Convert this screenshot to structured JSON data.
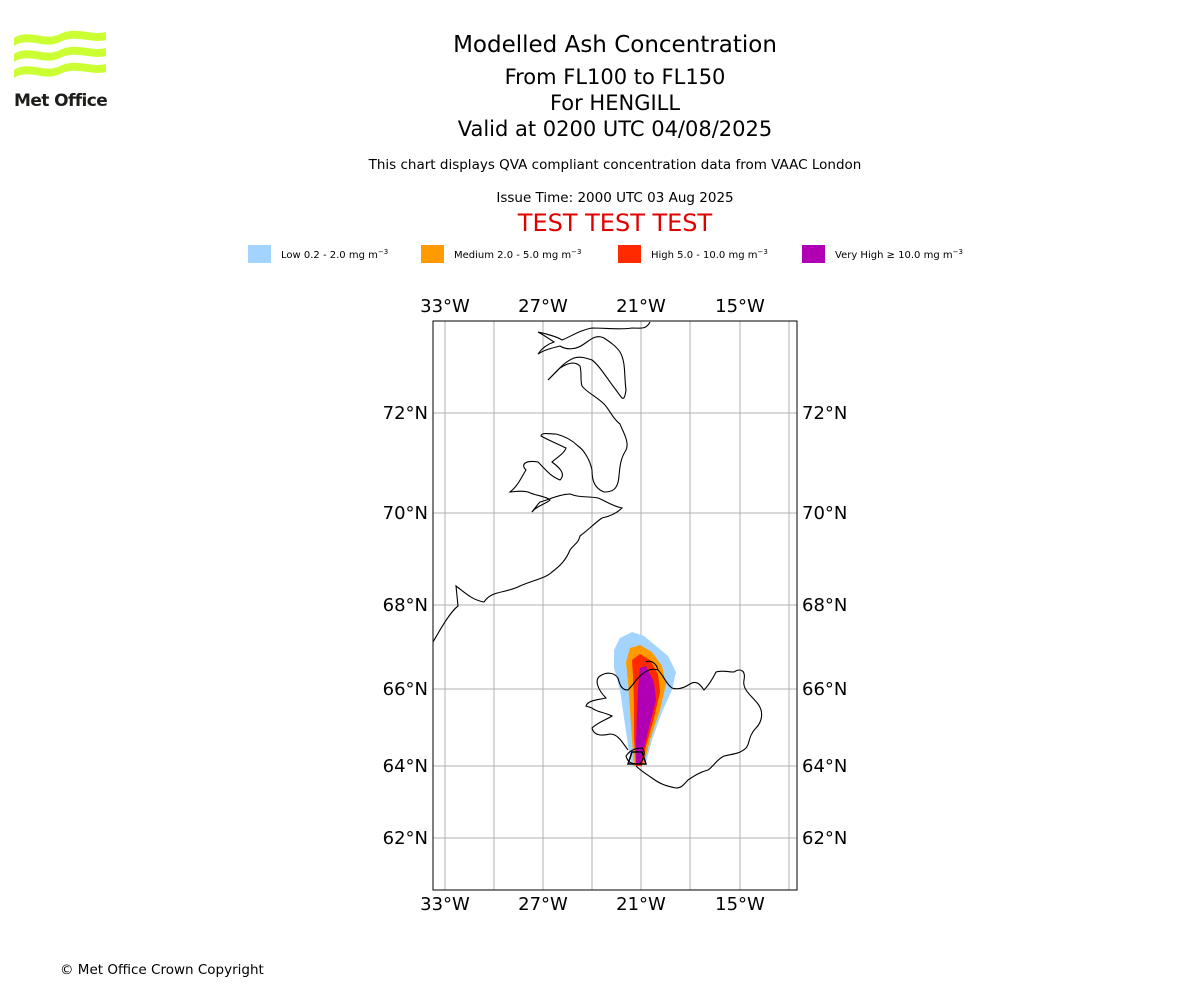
{
  "logo": {
    "text": "Met Office",
    "brand_color": "#ccff33"
  },
  "header": {
    "title": "Modelled Ash Concentration",
    "levels": "From FL100 to FL150",
    "volcano": "For HENGILL",
    "valid": "Valid at 0200 UTC 04/08/2025",
    "description": "This chart displays QVA compliant concentration data from VAAC London",
    "issue_time": "Issue Time: 2000 UTC 03 Aug 2025",
    "test_banner": "TEST TEST TEST"
  },
  "legend": [
    {
      "label": "Low 0.2 - 2.0 mg m",
      "exp": "−3",
      "color": "#a3d4ff"
    },
    {
      "label": "Medium 2.0 - 5.0 mg m",
      "exp": "−3",
      "color": "#ff9a00"
    },
    {
      "label": "High 5.0 - 10.0 mg m",
      "exp": "−3",
      "color": "#ff2a00"
    },
    {
      "label": "Very High  ≥  10.0 mg m",
      "exp": "−3",
      "color": "#b100b4"
    }
  ],
  "map": {
    "lon_ticks": [
      "33°W",
      "27°W",
      "21°W",
      "15°W"
    ],
    "lat_ticks": [
      "72°N",
      "70°N",
      "68°N",
      "66°N",
      "64°N",
      "62°N"
    ],
    "grid": true,
    "source_location": "HENGILL"
  },
  "footer": {
    "copyright": "© Met Office Crown Copyright"
  }
}
